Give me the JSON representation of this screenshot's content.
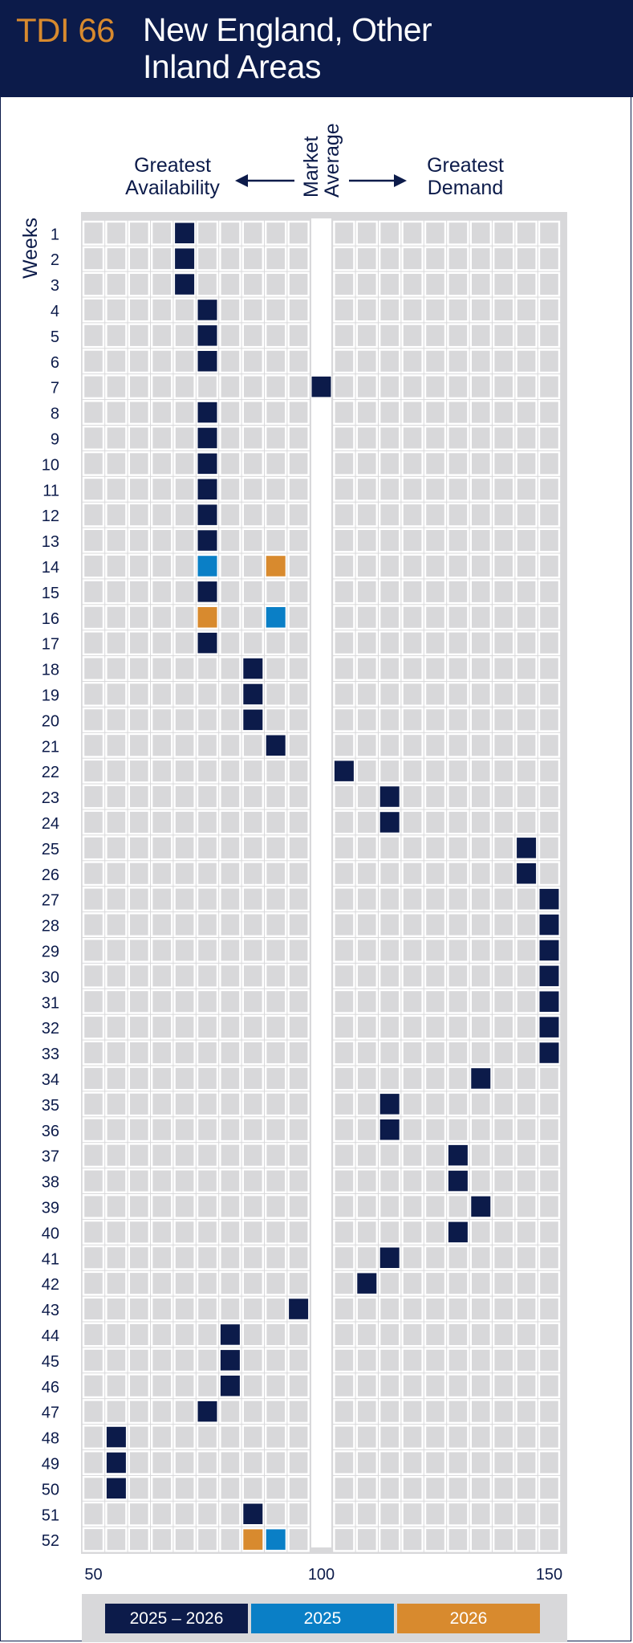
{
  "header": {
    "code": "TDI 66",
    "title_line1": "New England, Other",
    "title_line2": "Inland Areas"
  },
  "labels": {
    "left_line1": "Greatest",
    "left_line2": "Availability",
    "right_line1": "Greatest",
    "right_line2": "Demand",
    "center_line1": "Market",
    "center_line2": "Average",
    "weeks": "Weeks"
  },
  "colors": {
    "navy": "#0c1b4a",
    "blue": "#0a7fc6",
    "orange": "#d88a2e",
    "cell": "#d8d8da",
    "bg": "#ffffff"
  },
  "chart_data": {
    "type": "heatmap",
    "title": "TDI 66 New England, Other Inland Areas",
    "xlabel": "",
    "ylabel": "Weeks",
    "xlim": [
      50,
      150
    ],
    "x_ticks": [
      50,
      100,
      150
    ],
    "weeks": [
      1,
      2,
      3,
      4,
      5,
      6,
      7,
      8,
      9,
      10,
      11,
      12,
      13,
      14,
      15,
      16,
      17,
      18,
      19,
      20,
      21,
      22,
      23,
      24,
      25,
      26,
      27,
      28,
      29,
      30,
      31,
      32,
      33,
      34,
      35,
      36,
      37,
      38,
      39,
      40,
      41,
      42,
      43,
      44,
      45,
      46,
      47,
      48,
      49,
      50,
      51,
      52
    ],
    "legend": [
      "2025 – 2026",
      "2025",
      "2026"
    ],
    "series": [
      {
        "name": "2025 – 2026",
        "values": [
          70,
          70,
          70,
          75,
          75,
          75,
          101,
          75,
          75,
          75,
          75,
          75,
          75,
          null,
          75,
          null,
          75,
          85,
          85,
          85,
          90,
          106,
          116,
          116,
          146,
          146,
          151,
          151,
          151,
          151,
          151,
          151,
          151,
          136,
          116,
          116,
          131,
          131,
          136,
          131,
          116,
          111,
          96,
          80,
          80,
          80,
          75,
          55,
          55,
          55,
          85,
          null
        ]
      },
      {
        "name": "2025",
        "values": [
          null,
          null,
          null,
          null,
          null,
          null,
          null,
          null,
          null,
          null,
          null,
          null,
          null,
          75,
          null,
          90,
          null,
          null,
          null,
          null,
          null,
          null,
          null,
          null,
          null,
          null,
          null,
          null,
          null,
          null,
          null,
          null,
          null,
          null,
          null,
          null,
          null,
          null,
          null,
          null,
          null,
          null,
          null,
          null,
          null,
          null,
          null,
          null,
          null,
          null,
          null,
          90
        ]
      },
      {
        "name": "2026",
        "values": [
          null,
          null,
          null,
          null,
          null,
          null,
          null,
          null,
          null,
          null,
          null,
          null,
          null,
          90,
          null,
          75,
          null,
          null,
          null,
          null,
          null,
          null,
          null,
          null,
          null,
          null,
          null,
          null,
          null,
          null,
          null,
          null,
          null,
          null,
          null,
          null,
          null,
          null,
          null,
          null,
          null,
          null,
          null,
          null,
          null,
          null,
          null,
          null,
          null,
          null,
          null,
          85
        ]
      }
    ]
  }
}
